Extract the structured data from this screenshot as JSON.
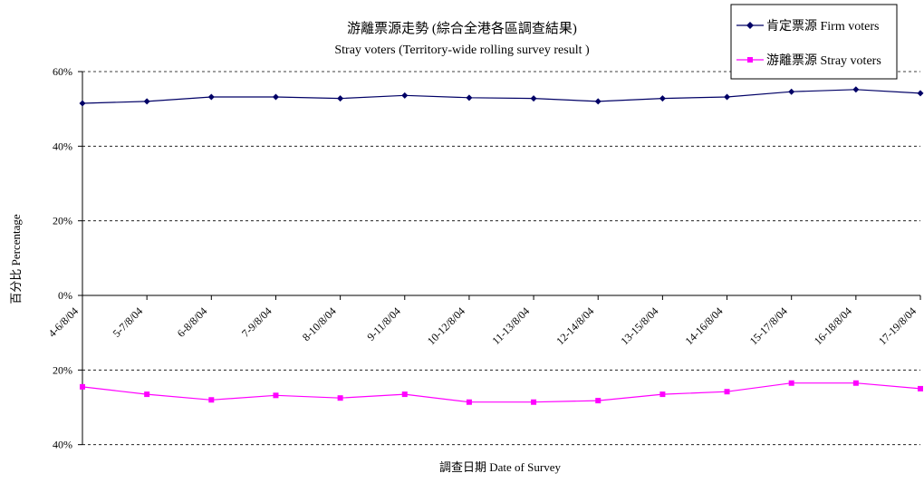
{
  "chart_data": {
    "type": "line",
    "title": "游離票源走勢 (綜合全港各區調查結果)",
    "subtitle": "Stray voters (Territory-wide rolling survey result )",
    "xlabel": "調查日期 Date of Survey",
    "ylabel": "百分比 Percentage",
    "categories": [
      "4-6/8/04",
      "5-7/8/04",
      "6-8/8/04",
      "7-9/8/04",
      "8-10/8/04",
      "9-11/8/04",
      "10-12/8/04",
      "11-13/8/04",
      "12-14/8/04",
      "13-15/8/04",
      "14-16/8/04",
      "15-17/8/04",
      "16-18/8/04",
      "17-19/8/04"
    ],
    "upper_axis": {
      "ticks": [
        "60%",
        "40%",
        "20%",
        "0%"
      ],
      "range": [
        0,
        60
      ]
    },
    "lower_axis": {
      "ticks": [
        "20%",
        "40%"
      ],
      "range": [
        0,
        40
      ],
      "direction": "down"
    },
    "grid": true,
    "legend_position": "top-right",
    "series": [
      {
        "name": "肯定票源 Firm voters",
        "color": "#000066",
        "marker": "diamond",
        "panel": "upper",
        "values": [
          51.5,
          52,
          53.2,
          53.2,
          52.8,
          53.6,
          53,
          52.8,
          52,
          52.8,
          53.2,
          54.6,
          55.2,
          54.2
        ]
      },
      {
        "name": "游離票源 Stray voters",
        "color": "#ff00ff",
        "marker": "square",
        "panel": "lower",
        "values": [
          24.5,
          26.5,
          28,
          26.8,
          27.5,
          26.5,
          28.6,
          28.6,
          28.2,
          26.5,
          25.8,
          23.5,
          23.5,
          25
        ]
      }
    ]
  }
}
